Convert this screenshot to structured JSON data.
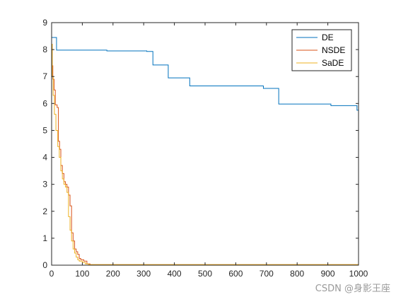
{
  "chart_data": {
    "type": "line",
    "title": "",
    "xlabel": "",
    "ylabel": "",
    "xlim": [
      0,
      1000
    ],
    "ylim": [
      0,
      9
    ],
    "x_ticks": [
      0,
      100,
      200,
      300,
      400,
      500,
      600,
      700,
      800,
      900,
      1000
    ],
    "y_ticks": [
      0,
      1,
      2,
      3,
      4,
      5,
      6,
      7,
      8,
      9
    ],
    "grid": false,
    "legend_position": "top-right",
    "series": [
      {
        "name": "DE",
        "color": "#0072bd",
        "step": true,
        "x": [
          0,
          16,
          180,
          310,
          330,
          380,
          450,
          690,
          740,
          910,
          995,
          1000
        ],
        "y": [
          8.45,
          7.98,
          7.95,
          7.93,
          7.43,
          6.95,
          6.65,
          6.56,
          5.98,
          5.92,
          5.75,
          5.75
        ]
      },
      {
        "name": "NSDE",
        "color": "#d95319",
        "step": true,
        "x": [
          0,
          2,
          4,
          8,
          12,
          18,
          22,
          26,
          30,
          35,
          40,
          45,
          50,
          55,
          60,
          65,
          70,
          75,
          80,
          85,
          90,
          95,
          105,
          115,
          125,
          1000
        ],
        "y": [
          8.2,
          7.4,
          6.9,
          6.5,
          5.95,
          5.85,
          4.6,
          4.3,
          3.7,
          3.4,
          3.1,
          3.0,
          2.9,
          2.6,
          2.2,
          1.2,
          0.9,
          0.6,
          0.5,
          0.4,
          0.25,
          0.2,
          0.15,
          0.05,
          0.02,
          0.0
        ]
      },
      {
        "name": "SaDE",
        "color": "#edb120",
        "step": true,
        "x": [
          0,
          2,
          5,
          9,
          14,
          20,
          25,
          30,
          35,
          40,
          45,
          50,
          55,
          60,
          65,
          70,
          75,
          80,
          85,
          90,
          100,
          110,
          120,
          1000
        ],
        "y": [
          8.2,
          7.0,
          6.3,
          5.6,
          5.0,
          4.4,
          4.0,
          3.5,
          3.2,
          3.0,
          2.9,
          2.7,
          1.8,
          1.3,
          0.9,
          0.6,
          0.45,
          0.3,
          0.2,
          0.15,
          0.1,
          0.05,
          0.02,
          0.0
        ]
      }
    ]
  },
  "watermark": "CSDN @身影王座"
}
